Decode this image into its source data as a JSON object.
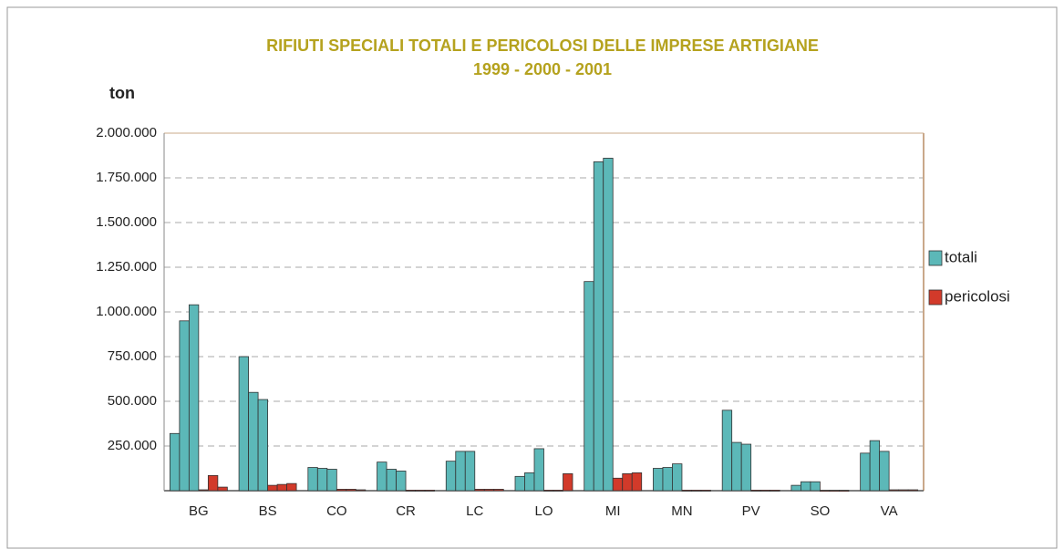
{
  "chart_data": {
    "type": "grouped-bar",
    "title": "RIFIUTI SPECIALI TOTALI E PERICOLOSI DELLE IMPRESE ARTIGIANE",
    "subtitle": "1999 - 2000 - 2001",
    "y_label": "ton",
    "categories": [
      "BG",
      "BS",
      "CO",
      "CR",
      "LC",
      "LO",
      "MI",
      "MN",
      "PV",
      "SO",
      "VA"
    ],
    "series": [
      {
        "name": "totali",
        "color": "#5cb8b8",
        "values": [
          [
            320000,
            950000,
            1040000
          ],
          [
            750000,
            550000,
            510000
          ],
          [
            130000,
            125000,
            120000
          ],
          [
            160000,
            120000,
            110000
          ],
          [
            165000,
            220000,
            220000
          ],
          [
            80000,
            100000,
            235000
          ],
          [
            1170000,
            1840000,
            1860000
          ],
          [
            125000,
            130000,
            150000
          ],
          [
            450000,
            270000,
            260000
          ],
          [
            30000,
            50000,
            50000
          ],
          [
            210000,
            280000,
            220000
          ]
        ]
      },
      {
        "name": "pericolosi",
        "color": "#d23a2a",
        "values": [
          [
            5000,
            85000,
            20000
          ],
          [
            30000,
            35000,
            40000
          ],
          [
            8000,
            8000,
            5000
          ],
          [
            3000,
            3000,
            3000
          ],
          [
            8000,
            8000,
            8000
          ],
          [
            3000,
            3000,
            95000
          ],
          [
            70000,
            95000,
            100000
          ],
          [
            3000,
            3000,
            3000
          ],
          [
            3000,
            3000,
            3000
          ],
          [
            2000,
            2000,
            2000
          ],
          [
            5000,
            5000,
            5000
          ]
        ]
      }
    ],
    "ylim": [
      0,
      2000000
    ],
    "yticks": [
      {
        "value": 250000,
        "label": "250.000"
      },
      {
        "value": 500000,
        "label": "500.000"
      },
      {
        "value": 750000,
        "label": "750.000"
      },
      {
        "value": 1000000,
        "label": "1.000.000"
      },
      {
        "value": 1250000,
        "label": "1.250.000"
      },
      {
        "value": 1500000,
        "label": "1.500.000"
      },
      {
        "value": 1750000,
        "label": "1.750.000"
      },
      {
        "value": 2000000,
        "label": "2.000.000"
      }
    ],
    "grid": true,
    "legend": "right"
  }
}
